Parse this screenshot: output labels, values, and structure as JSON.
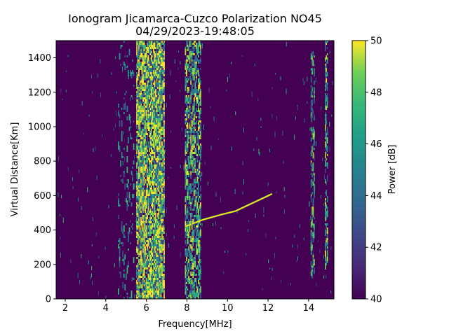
{
  "chart_data": {
    "type": "heatmap",
    "title_line1": "Ionogram Jicamarca-Cuzco Polarization NO45",
    "title_line2": "04/29/2023-19:48:05",
    "xlabel": "Frequency[MHz]",
    "ylabel": "Virtual Distance[Km]",
    "colorbar_label": "Power [dB]",
    "xlim": [
      1.55,
      15.25
    ],
    "ylim": [
      0,
      1500
    ],
    "x_ticks": [
      2,
      4,
      6,
      8,
      10,
      12,
      14
    ],
    "y_ticks": [
      0,
      200,
      400,
      600,
      800,
      1000,
      1200,
      1400
    ],
    "clim": [
      40,
      50
    ],
    "colorbar_ticks": [
      40,
      42,
      44,
      46,
      48,
      50
    ],
    "colormap": "viridis",
    "background_color": "#440154",
    "features": [
      {
        "name": "broadband noise",
        "x_range": [
          5.5,
          6.9
        ],
        "y_range": [
          0,
          1500
        ],
        "intensity": 0.85
      },
      {
        "name": "noise band",
        "x_range": [
          7.9,
          8.7
        ],
        "y_range": [
          0,
          1500
        ],
        "intensity": 0.45
      },
      {
        "name": "weak noise",
        "x_range": [
          4.6,
          5.4
        ],
        "y_range": [
          0,
          1500
        ],
        "intensity": 0.08
      },
      {
        "name": "interference",
        "x_range": [
          14.1,
          14.3
        ],
        "y_range": [
          150,
          1450
        ],
        "intensity": 0.3
      },
      {
        "name": "interference",
        "x_range": [
          14.8,
          14.95
        ],
        "y_range": [
          200,
          1500
        ],
        "intensity": 0.45
      },
      {
        "name": "ionospheric trace",
        "points": [
          [
            7.9,
            420
          ],
          [
            8.8,
            460
          ],
          [
            9.7,
            490
          ],
          [
            10.4,
            510
          ],
          [
            11.3,
            560
          ],
          [
            12.2,
            610
          ]
        ]
      }
    ]
  }
}
